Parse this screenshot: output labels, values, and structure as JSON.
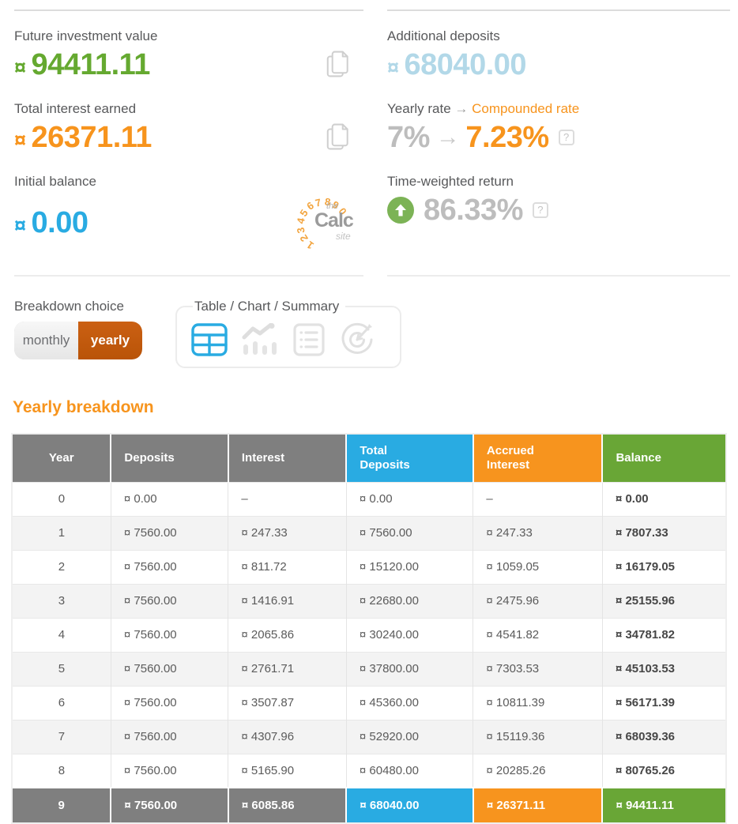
{
  "colors": {
    "green_value": "#65a930",
    "orange_value": "#f7941d",
    "blue_value": "#29abe2",
    "light_blue_value": "#b2d8e8",
    "gray_value": "#bdbdbd",
    "toggle_yearly_bg": "#c05a11",
    "header_gray": "#7f7f7f",
    "header_blue": "#29abe2",
    "header_orange": "#f7941e",
    "header_green": "#69a636",
    "twr_circle_green": "#7cb356"
  },
  "stats": {
    "future_value": {
      "label": "Future investment value",
      "currency": "¤",
      "value": "94411.11"
    },
    "total_interest": {
      "label": "Total interest earned",
      "currency": "¤",
      "value": "26371.11"
    },
    "initial_balance": {
      "label": "Initial balance",
      "currency": "¤",
      "value": "0.00"
    },
    "additional_deposits": {
      "label": "Additional deposits",
      "currency": "¤",
      "value": "68040.00"
    },
    "rate": {
      "label_left": "Yearly rate",
      "label_arrow": "→",
      "label_right": "Compounded rate",
      "from": "7%",
      "arrow": "→",
      "to": "7.23%"
    },
    "twr": {
      "label": "Time-weighted return",
      "value": "86.33%"
    }
  },
  "ui": {
    "help_glyph": "?"
  },
  "logo": {
    "digits": "1234567890",
    "the": "the",
    "calc": "Calc",
    "site": "site"
  },
  "breakdown": {
    "label": "Breakdown choice",
    "monthly": "monthly",
    "yearly": "yearly",
    "views_label": "Table / Chart / Summary"
  },
  "table": {
    "title": "Yearly breakdown",
    "headers": [
      "Year",
      "Deposits",
      "Interest",
      "Total\nDeposits",
      "Accrued\nInterest",
      "Balance"
    ],
    "rows": [
      [
        "0",
        "¤ 0.00",
        "–",
        "¤ 0.00",
        "–",
        "¤ 0.00"
      ],
      [
        "1",
        "¤ 7560.00",
        "¤ 247.33",
        "¤ 7560.00",
        "¤ 247.33",
        "¤ 7807.33"
      ],
      [
        "2",
        "¤ 7560.00",
        "¤ 811.72",
        "¤ 15120.00",
        "¤ 1059.05",
        "¤ 16179.05"
      ],
      [
        "3",
        "¤ 7560.00",
        "¤ 1416.91",
        "¤ 22680.00",
        "¤ 2475.96",
        "¤ 25155.96"
      ],
      [
        "4",
        "¤ 7560.00",
        "¤ 2065.86",
        "¤ 30240.00",
        "¤ 4541.82",
        "¤ 34781.82"
      ],
      [
        "5",
        "¤ 7560.00",
        "¤ 2761.71",
        "¤ 37800.00",
        "¤ 7303.53",
        "¤ 45103.53"
      ],
      [
        "6",
        "¤ 7560.00",
        "¤ 3507.87",
        "¤ 45360.00",
        "¤ 10811.39",
        "¤ 56171.39"
      ],
      [
        "7",
        "¤ 7560.00",
        "¤ 4307.96",
        "¤ 52920.00",
        "¤ 15119.36",
        "¤ 68039.36"
      ],
      [
        "8",
        "¤ 7560.00",
        "¤ 5165.90",
        "¤ 60480.00",
        "¤ 20285.26",
        "¤ 80765.26"
      ],
      [
        "9",
        "¤ 7560.00",
        "¤ 6085.86",
        "¤ 68040.00",
        "¤ 26371.11",
        "¤ 94411.11"
      ]
    ]
  }
}
